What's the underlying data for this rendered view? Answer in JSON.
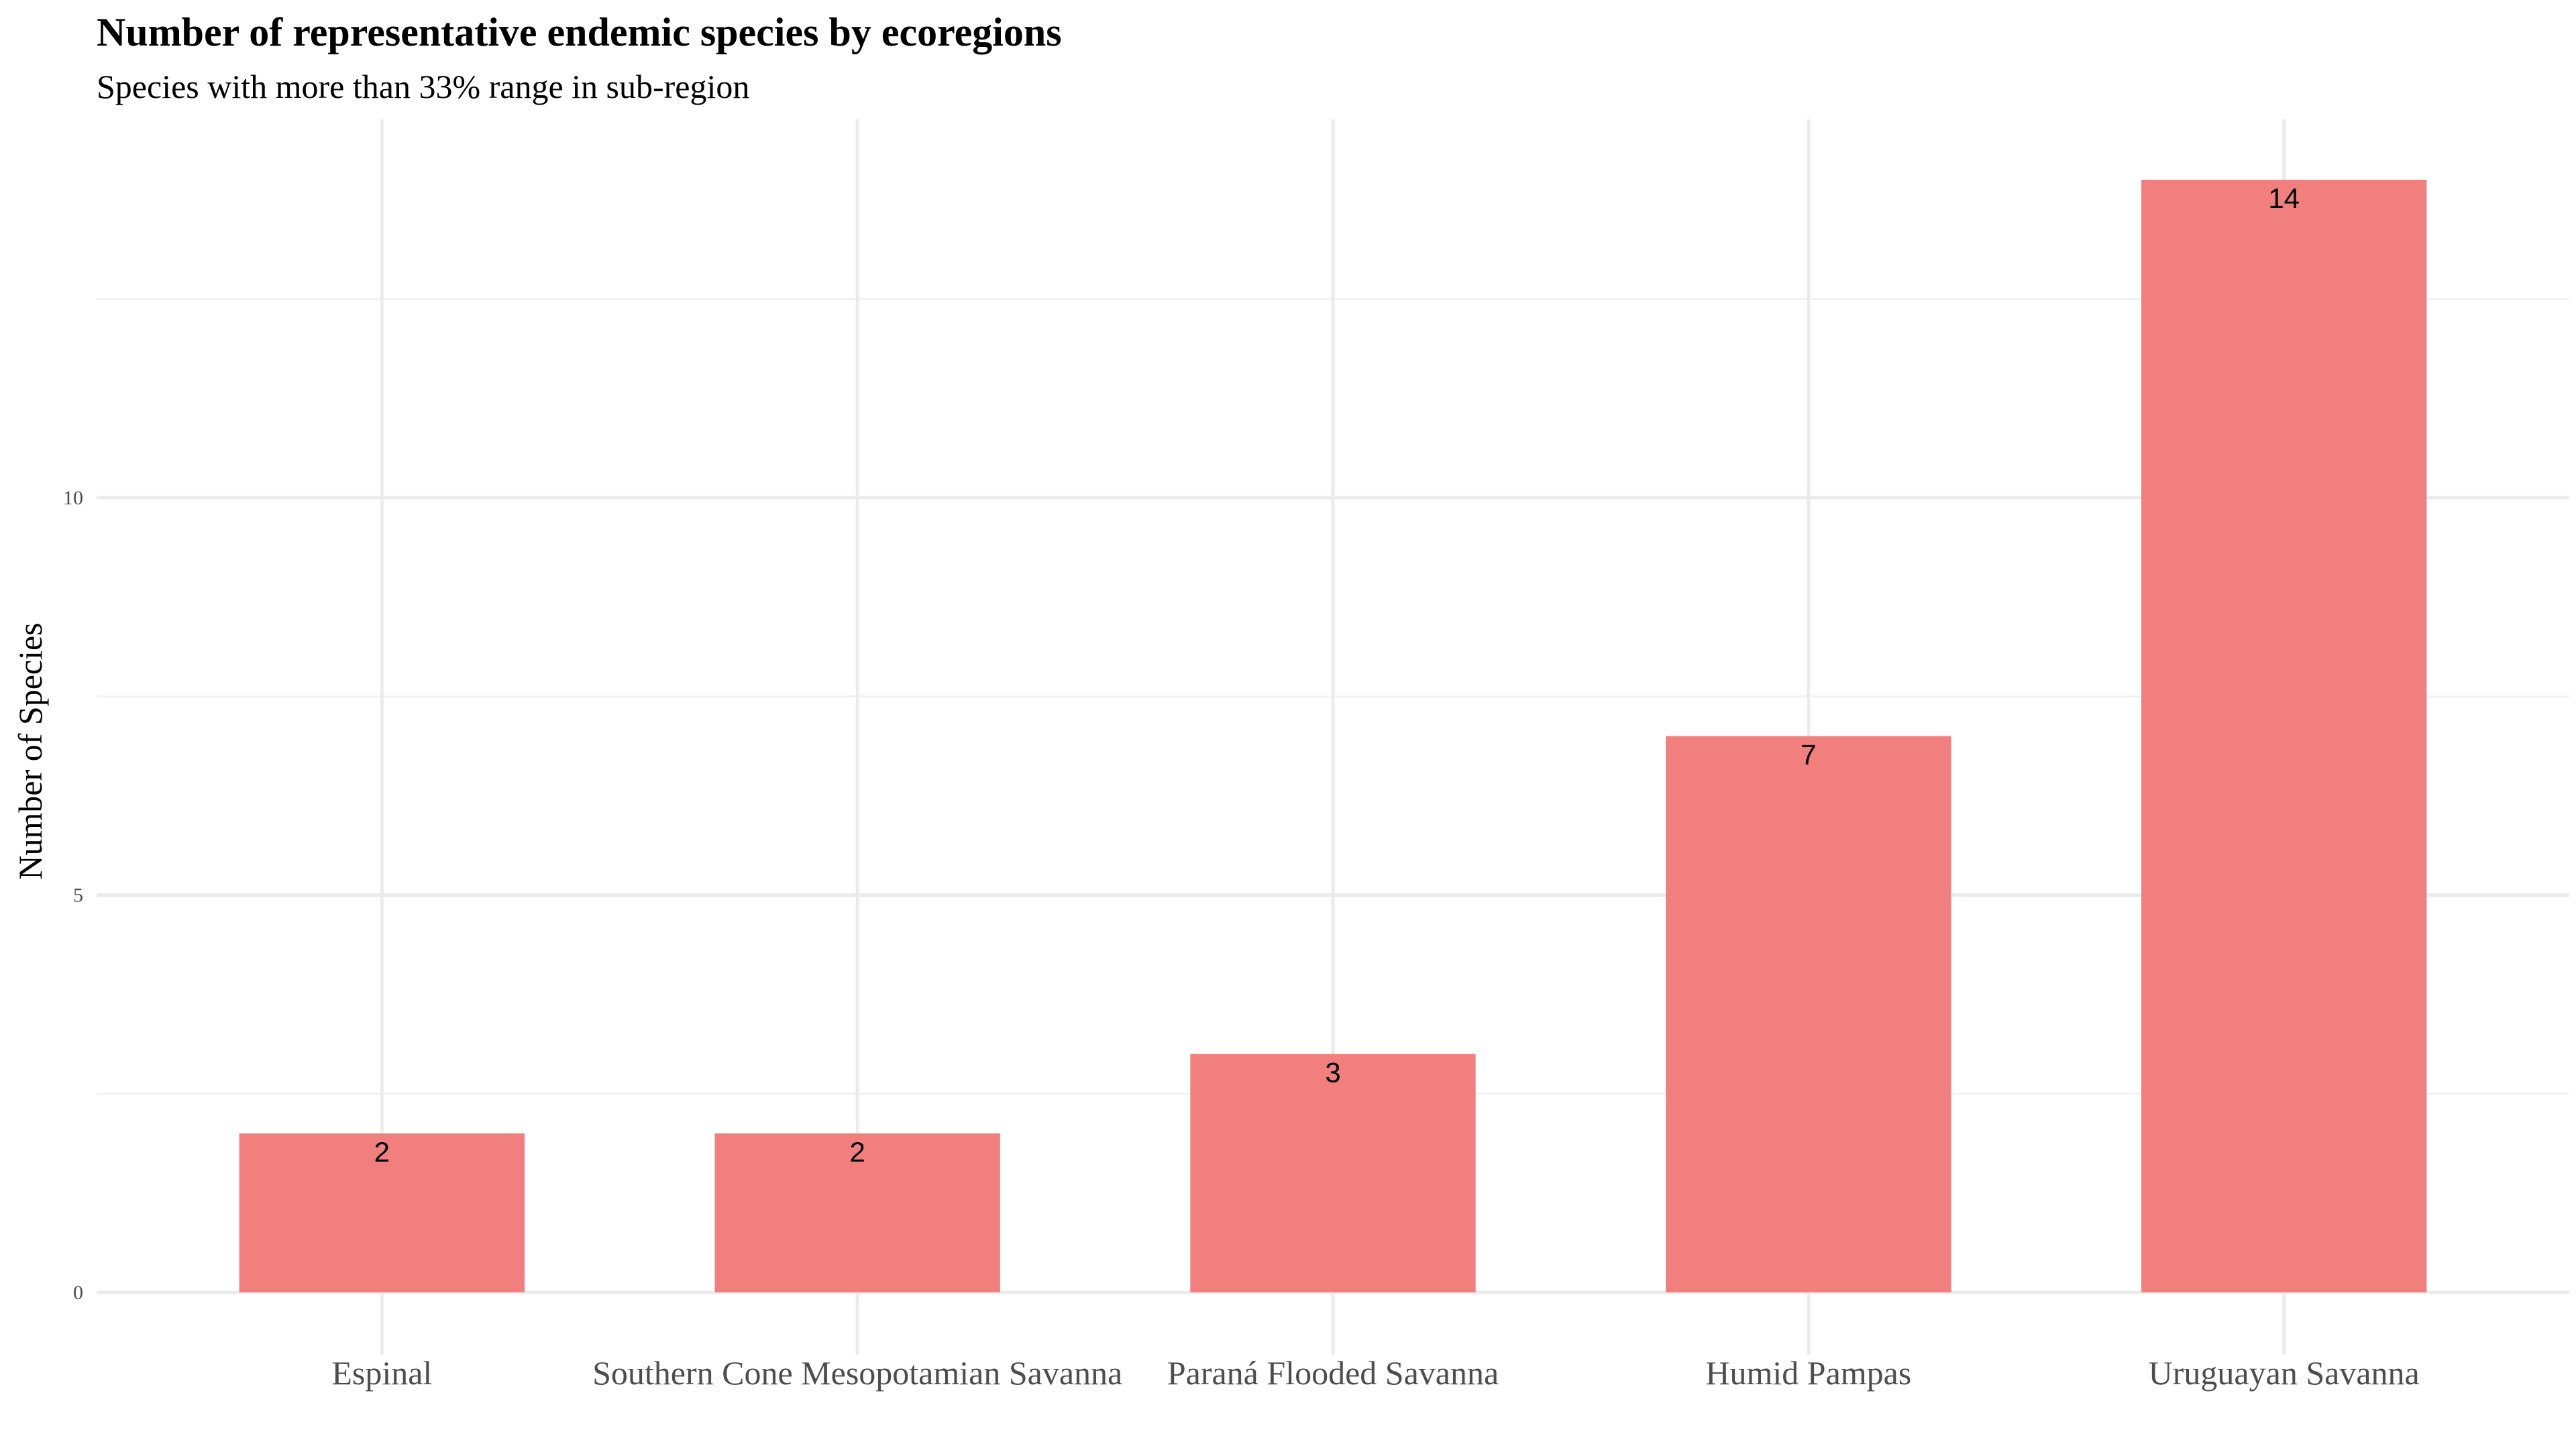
{
  "chart_data": {
    "type": "bar",
    "title": "Number of representative endemic species by ecoregions",
    "subtitle": "Species with more than 33% range in sub-region",
    "xlabel": "",
    "ylabel": "Number of Species",
    "categories": [
      "Espinal",
      "Southern Cone Mesopotamian Savanna",
      "Paraná Flooded Savanna",
      "Humid Pampas",
      "Uruguayan Savanna"
    ],
    "values": [
      2,
      2,
      3,
      7,
      14
    ],
    "data_labels": [
      "2",
      "2",
      "3",
      "7",
      "14"
    ],
    "yticks": [
      0,
      5,
      10
    ],
    "ytick_labels": [
      "0",
      "5",
      "10"
    ],
    "ylim": [
      0,
      14.7
    ],
    "grid": true,
    "legend": "none",
    "bar_color": "#F07F7D"
  }
}
